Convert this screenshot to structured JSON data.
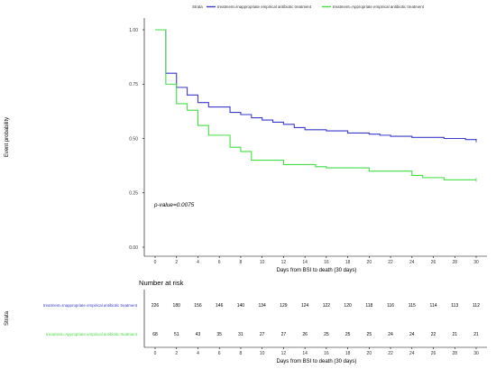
{
  "chart_data": {
    "type": "line",
    "legend": {
      "title": "Strata",
      "position": "top"
    },
    "ylabel": "Event probability",
    "xlabel": "Days from BSI to death (30 days)",
    "xlim": [
      0,
      30
    ],
    "ylim": [
      0,
      1
    ],
    "x_ticks": [
      "0",
      "2",
      "4",
      "6",
      "8",
      "10",
      "12",
      "14",
      "16",
      "18",
      "20",
      "22",
      "24",
      "26",
      "28",
      "30"
    ],
    "y_ticks": [
      "0.00",
      "0.25",
      "0.50",
      "0.75",
      "1.00"
    ],
    "grid": false,
    "annotation": "p-value=0.0075",
    "series": [
      {
        "name": "treatment=Inappropriate empirical antibiotic treatment",
        "risk_label": "treatment=Inappropriate empirical antibiotic treatment",
        "color": "#3a3acc",
        "step": [
          [
            0,
            1.0
          ],
          [
            1,
            0.8
          ],
          [
            2,
            0.735
          ],
          [
            3,
            0.7
          ],
          [
            4,
            0.665
          ],
          [
            5,
            0.645
          ],
          [
            7,
            0.62
          ],
          [
            8,
            0.61
          ],
          [
            9,
            0.595
          ],
          [
            10,
            0.585
          ],
          [
            11,
            0.575
          ],
          [
            12,
            0.565
          ],
          [
            13,
            0.55
          ],
          [
            14,
            0.54
          ],
          [
            16,
            0.535
          ],
          [
            18,
            0.525
          ],
          [
            20,
            0.52
          ],
          [
            21,
            0.515
          ],
          [
            22,
            0.51
          ],
          [
            24,
            0.505
          ],
          [
            25,
            0.505
          ],
          [
            27,
            0.5
          ],
          [
            29,
            0.495
          ],
          [
            30,
            0.49
          ]
        ],
        "at_risk": [
          "226",
          "180",
          "156",
          "146",
          "140",
          "134",
          "129",
          "124",
          "122",
          "120",
          "118",
          "116",
          "115",
          "114",
          "113",
          "112"
        ]
      },
      {
        "name": "treatment=Appropriate empirical antibiotic treatment",
        "risk_label": "treatment=Appropriate empirical antibiotic treatment",
        "color": "#44dd44",
        "step": [
          [
            0,
            1.0
          ],
          [
            1,
            0.75
          ],
          [
            2,
            0.66
          ],
          [
            3,
            0.63
          ],
          [
            4,
            0.56
          ],
          [
            5,
            0.515
          ],
          [
            7,
            0.46
          ],
          [
            8,
            0.44
          ],
          [
            9,
            0.4
          ],
          [
            12,
            0.38
          ],
          [
            15,
            0.37
          ],
          [
            16,
            0.365
          ],
          [
            20,
            0.35
          ],
          [
            22,
            0.35
          ],
          [
            24,
            0.33
          ],
          [
            25,
            0.32
          ],
          [
            27,
            0.31
          ],
          [
            30,
            0.31
          ]
        ],
        "at_risk": [
          "68",
          "51",
          "43",
          "35",
          "31",
          "27",
          "27",
          "26",
          "25",
          "25",
          "25",
          "24",
          "24",
          "22",
          "21",
          "21"
        ]
      }
    ],
    "risk_table": {
      "title": "Number at risk",
      "ylabel": "Strata",
      "xlabel": "Days from BSI to death (30 days)",
      "x_ticks": [
        "0",
        "2",
        "4",
        "6",
        "8",
        "10",
        "12",
        "14",
        "16",
        "18",
        "20",
        "22",
        "24",
        "26",
        "28",
        "30"
      ]
    }
  }
}
